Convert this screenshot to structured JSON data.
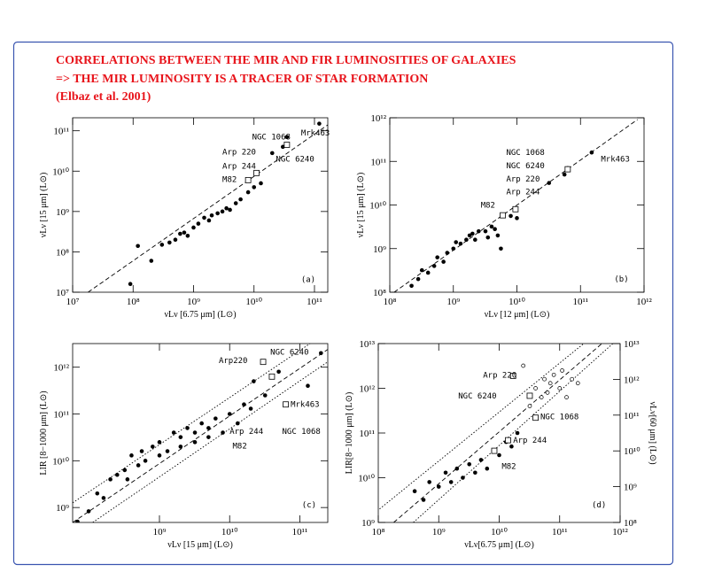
{
  "header": {
    "lines": [
      "CORRELATIONS BETWEEN THE MIR AND FIR LUMINOSITIES OF GALAXIES",
      "=> THE MIR LUMINOSITY IS A TRACER OF STAR FORMATION",
      "(Elbaz et al. 2001)"
    ]
  },
  "chart_data": [
    {
      "type": "scatter",
      "log": true,
      "color": "#000000",
      "x_label": "νLν [6.75 μm] (L⊙)",
      "y_label": "νLν [15 μm] (L⊙)",
      "xlim": [
        10000000.0,
        166000000000.0
      ],
      "ylim": [
        10000000.0,
        210000000000.0
      ],
      "xticks": [
        {
          "value": 10000000.0,
          "label": "10⁷"
        },
        {
          "value": 100000000.0,
          "label": "10⁸"
        },
        {
          "value": 1000000000.0,
          "label": "10⁹"
        },
        {
          "value": 10000000000.0,
          "label": "10¹⁰"
        },
        {
          "value": 100000000000.0,
          "label": "10¹¹"
        }
      ],
      "yticks": [
        {
          "value": 10000000.0,
          "label": "10⁷"
        },
        {
          "value": 100000000.0,
          "label": "10⁸"
        },
        {
          "value": 1000000000.0,
          "label": "10⁹"
        },
        {
          "value": 10000000000.0,
          "label": "10¹⁰"
        },
        {
          "value": 100000000000.0,
          "label": "10¹¹"
        }
      ],
      "points": {
        "x": [
          90000000.0,
          120000000.0,
          200000000.0,
          300000000.0,
          400000000.0,
          500000000.0,
          600000000.0,
          700000000.0,
          800000000.0,
          1000000000.0,
          1200000000.0,
          1500000000.0,
          1800000000.0,
          2000000000.0,
          2500000000.0,
          3000000000.0,
          3500000000.0,
          4000000000.0,
          5000000000.0,
          6000000000.0,
          8000000000.0,
          10000000000.0,
          13000000000.0,
          20000000000.0,
          30000000000.0,
          35000000000.0,
          120000000000.0
        ],
        "y": [
          16000000.0,
          140000000.0,
          60000000.0,
          150000000.0,
          170000000.0,
          200000000.0,
          280000000.0,
          300000000.0,
          250000000.0,
          400000000.0,
          500000000.0,
          700000000.0,
          600000000.0,
          800000000.0,
          900000000.0,
          1000000000.0,
          1200000000.0,
          1100000000.0,
          1600000000.0,
          2000000000.0,
          3000000000.0,
          4000000000.0,
          5000000000.0,
          28000000000.0,
          40000000000.0,
          70000000000.0,
          150000000000.0
        ]
      },
      "open_points": {
        "x": [
          8000000000.0,
          11000000000.0,
          35000000000.0
        ],
        "y": [
          6000000000.0,
          9000000000.0,
          45000000000.0
        ]
      },
      "lines": [
        {
          "x": [
            18000000.0,
            166000000000.0
          ],
          "y": [
            10000000.0,
            140000000000.0
          ],
          "style": "dashed"
        }
      ],
      "annotations": [
        {
          "text": "NGC 1068",
          "x": 9300000000.0,
          "y": 70000000000.0
        },
        {
          "text": "Mrk463",
          "x": 60000000000.0,
          "y": 90000000000.0
        },
        {
          "text": "Arp 220",
          "x": 3000000000.0,
          "y": 30000000000.0
        },
        {
          "text": "NGC 6240",
          "x": 23000000000.0,
          "y": 20000000000.0
        },
        {
          "text": "Arp 244",
          "x": 3000000000.0,
          "y": 13500000000.0
        },
        {
          "text": "M82",
          "x": 3000000000.0,
          "y": 6300000000.0
        },
        {
          "text": "(a)",
          "x": 60000000000.0,
          "y": 21000000.0
        }
      ]
    },
    {
      "type": "scatter",
      "log": true,
      "color": "#000000",
      "x_label": "νLν [12 μm] (L⊙)",
      "y_label": "νLν [15 μm] (L⊙)",
      "xlim": [
        100000000.0,
        1000000000000.0
      ],
      "ylim": [
        100000000.0,
        1000000000000.0
      ],
      "xticks": [
        {
          "value": 100000000.0,
          "label": "10⁸"
        },
        {
          "value": 1000000000.0,
          "label": "10⁹"
        },
        {
          "value": 10000000000.0,
          "label": "10¹⁰"
        },
        {
          "value": 100000000000.0,
          "label": "10¹¹"
        },
        {
          "value": 1000000000000.0,
          "label": "10¹²"
        }
      ],
      "yticks": [
        {
          "value": 100000000.0,
          "label": "10⁸"
        },
        {
          "value": 1000000000.0,
          "label": "10⁹"
        },
        {
          "value": 10000000000.0,
          "label": "10¹⁰"
        },
        {
          "value": 100000000000.0,
          "label": "10¹¹"
        },
        {
          "value": 1000000000000.0,
          "label": "10¹²"
        }
      ],
      "points": {
        "x": [
          220000000.0,
          280000000.0,
          320000000.0,
          400000000.0,
          500000000.0,
          560000000.0,
          700000000.0,
          800000000.0,
          1000000000.0,
          1100000000.0,
          1300000000.0,
          1600000000.0,
          1800000000.0,
          2000000000.0,
          2200000000.0,
          2500000000.0,
          3200000000.0,
          3500000000.0,
          4000000000.0,
          4500000000.0,
          5000000000.0,
          5600000000.0,
          8000000000.0,
          10000000000.0,
          32000000000.0,
          56000000000.0,
          63000000000.0,
          150000000000.0
        ],
        "y": [
          140000000.0,
          200000000.0,
          320000000.0,
          280000000.0,
          400000000.0,
          630000000.0,
          500000000.0,
          800000000.0,
          1000000000.0,
          1400000000.0,
          1300000000.0,
          1600000000.0,
          2000000000.0,
          2200000000.0,
          1600000000.0,
          2500000000.0,
          2500000000.0,
          1800000000.0,
          3200000000.0,
          2800000000.0,
          2000000000.0,
          1000000000.0,
          5600000000.0,
          5000000000.0,
          32000000000.0,
          50000000000.0,
          70000000000.0,
          160000000000.0
        ]
      },
      "open_points": {
        "x": [
          6000000000.0,
          9500000000.0,
          63000000000.0
        ],
        "y": [
          5800000000.0,
          8000000000.0,
          66000000000.0
        ]
      },
      "lines": [
        {
          "x": [
            117000000.0,
            790000000000.0
          ],
          "y": [
            100000000.0,
            910000000000.0
          ],
          "style": "dashed"
        }
      ],
      "annotations": [
        {
          "text": "NGC 1068",
          "x": 6800000000.0,
          "y": 160000000000.0
        },
        {
          "text": "NGC 6240",
          "x": 6800000000.0,
          "y": 80000000000.0
        },
        {
          "text": "Arp 220",
          "x": 6800000000.0,
          "y": 40000000000.0
        },
        {
          "text": "Arp 244",
          "x": 6800000000.0,
          "y": 20000000000.0
        },
        {
          "text": "M82",
          "x": 2700000000.0,
          "y": 10000000000.0
        },
        {
          "text": "Mrk463",
          "x": 210000000000.0,
          "y": 115000000000.0
        },
        {
          "text": "(b)",
          "x": 340000000000.0,
          "y": 200000000.0
        }
      ]
    },
    {
      "type": "scatter",
      "log": true,
      "color": "#000000",
      "x_label": "νLν [15 μm] (L⊙)",
      "y_label": "LIR [8−1000 μm] (L⊙)",
      "xlim": [
        58000000.0,
        250000000000.0
      ],
      "ylim": [
        480000000.0,
        3200000000000.0
      ],
      "xticks": [
        {
          "value": 1000000000.0,
          "label": "10⁹"
        },
        {
          "value": 10000000000.0,
          "label": "10¹⁰"
        },
        {
          "value": 100000000000.0,
          "label": "10¹¹"
        }
      ],
      "yticks": [
        {
          "value": 1000000000.0,
          "label": "10⁹"
        },
        {
          "value": 10000000000.0,
          "label": "10¹⁰"
        },
        {
          "value": 100000000000.0,
          "label": "10¹¹"
        },
        {
          "value": 1000000000000.0,
          "label": "10¹²"
        }
      ],
      "points": {
        "x": [
          68000000.0,
          98000000.0,
          130000000.0,
          160000000.0,
          200000000.0,
          250000000.0,
          320000000.0,
          350000000.0,
          400000000.0,
          500000000.0,
          560000000.0,
          630000000.0,
          800000000.0,
          1000000000.0,
          1000000000.0,
          1300000000.0,
          1600000000.0,
          2000000000.0,
          2000000000.0,
          2500000000.0,
          3200000000.0,
          3200000000.0,
          4000000000.0,
          5000000000.0,
          5000000000.0,
          6300000000.0,
          8000000000.0,
          10000000000.0,
          13000000000.0,
          16000000000.0,
          20000000000.0,
          22000000000.0,
          32000000000.0,
          50000000000.0,
          130000000000.0,
          200000000000.0
        ],
        "y": [
          500000000.0,
          830000000.0,
          2000000000.0,
          1600000000.0,
          4000000000.0,
          5000000000.0,
          6300000000.0,
          4000000000.0,
          13000000000.0,
          8000000000.0,
          16000000000.0,
          10000000000.0,
          20000000000.0,
          25000000000.0,
          13000000000.0,
          16000000000.0,
          40000000000.0,
          32000000000.0,
          20000000000.0,
          50000000000.0,
          40000000000.0,
          25000000000.0,
          63000000000.0,
          50000000000.0,
          32000000000.0,
          80000000000.0,
          40000000000.0,
          100000000000.0,
          63000000000.0,
          160000000000.0,
          130000000000.0,
          500000000000.0,
          250000000000.0,
          800000000000.0,
          400000000000.0,
          2000000000000.0
        ]
      },
      "open_points": {
        "x": [
          30000000000.0,
          40000000000.0,
          63000000000.0
        ],
        "y": [
          1300000000000.0,
          630000000000.0,
          160000000000.0
        ]
      },
      "lines": [
        {
          "x": [
            58000000.0,
            250000000000.0
          ],
          "y": [
            480000000.0,
            2400000000000.0
          ],
          "style": "dashed"
        },
        {
          "x": [
            58000000.0,
            140000000000.0
          ],
          "y": [
            1260000000.0,
            3200000000000.0
          ],
          "style": "dotted"
        },
        {
          "x": [
            112000000.0,
            250000000000.0
          ],
          "y": [
            480000000.0,
            1300000000000.0
          ],
          "style": "dotted"
        }
      ],
      "annotations": [
        {
          "text": "Arp220",
          "x": 7000000000.0,
          "y": 1400000000000.0
        },
        {
          "text": "NGC 6240",
          "x": 38000000000.0,
          "y": 2100000000000.0
        },
        {
          "text": "Mrk463",
          "x": 74000000000.0,
          "y": 160000000000.0
        },
        {
          "text": "NGC 1068",
          "x": 56000000000.0,
          "y": 43000000000.0
        },
        {
          "text": "Arp 244",
          "x": 10000000000.0,
          "y": 43000000000.0
        },
        {
          "text": "M82",
          "x": 11000000000.0,
          "y": 21000000000.0
        },
        {
          "text": "(c)",
          "x": 107000000000.0,
          "y": 1150000000.0
        }
      ]
    },
    {
      "type": "scatter",
      "log": true,
      "color": "#000000",
      "x_label": "νLν[6.75 μm] (L⊙)",
      "y_label": "LIR[8−1000 μm] (L⊙)",
      "y2_label": "νLν[60 μm] (L⊙)",
      "xlim": [
        100000000.0,
        1000000000000.0
      ],
      "ylim": [
        1000000000.0,
        10000000000000.0
      ],
      "y2lim": [
        100000000.0,
        10000000000000.0
      ],
      "xticks": [
        {
          "value": 100000000.0,
          "label": "10⁸"
        },
        {
          "value": 1000000000.0,
          "label": "10⁹"
        },
        {
          "value": 10000000000.0,
          "label": "10¹⁰"
        },
        {
          "value": 100000000000.0,
          "label": "10¹¹"
        },
        {
          "value": 1000000000000.0,
          "label": "10¹²"
        }
      ],
      "yticks": [
        {
          "value": 1000000000.0,
          "label": "10⁹"
        },
        {
          "value": 10000000000.0,
          "label": "10¹⁰"
        },
        {
          "value": 100000000000.0,
          "label": "10¹¹"
        },
        {
          "value": 1000000000000.0,
          "label": "10¹²"
        },
        {
          "value": 10000000000000.0,
          "label": "10¹³"
        }
      ],
      "y2ticks": [
        {
          "value": 100000000.0,
          "label": "10⁸"
        },
        {
          "value": 1000000000.0,
          "label": "10⁹"
        },
        {
          "value": 10000000000.0,
          "label": "10¹⁰"
        },
        {
          "value": 100000000000.0,
          "label": "10¹¹"
        },
        {
          "value": 1000000000000.0,
          "label": "10¹²"
        },
        {
          "value": 10000000000000.0,
          "label": "10¹³"
        }
      ],
      "points": {
        "x": [
          400000000.0,
          560000000.0,
          700000000.0,
          1000000000.0,
          1300000000.0,
          1600000000.0,
          2000000000.0,
          2500000000.0,
          3200000000.0,
          4000000000.0,
          5000000000.0,
          6300000000.0,
          8000000000.0,
          10000000000.0,
          13000000000.0,
          16000000000.0,
          20000000000.0
        ],
        "y": [
          5000000000.0,
          3200000000.0,
          8000000000.0,
          6300000000.0,
          13000000000.0,
          8000000000.0,
          16000000000.0,
          10000000000.0,
          20000000000.0,
          13000000000.0,
          25000000000.0,
          16000000000.0,
          40000000000.0,
          32000000000.0,
          63000000000.0,
          50000000000.0,
          100000000000.0
        ]
      },
      "open_circles": {
        "x": [
          32000000000.0,
          40000000000.0,
          50000000000.0,
          56000000000.0,
          63000000000.0,
          70000000000.0,
          80000000000.0,
          100000000000.0,
          110000000000.0,
          130000000000.0,
          160000000000.0,
          25000000000.0,
          200000000000.0
        ],
        "y": [
          400000000000.0,
          1000000000000.0,
          630000000000.0,
          1600000000000.0,
          800000000000.0,
          1300000000000.0,
          2000000000000.0,
          1000000000000.0,
          2500000000000.0,
          630000000000.0,
          1600000000000.0,
          3200000000000.0,
          1300000000000.0
        ]
      },
      "open_points": {
        "x": [
          17000000000.0,
          32000000000.0,
          40000000000.0,
          14000000000.0,
          8300000000.0
        ],
        "y": [
          1900000000000.0,
          680000000000.0,
          220000000000.0,
          69000000000.0,
          40000000000.0
        ]
      },
      "lines": [
        {
          "x": [
            180000000.0,
            500000000000.0
          ],
          "y": [
            1000000000.0,
            10000000000000.0
          ],
          "style": "dashed"
        },
        {
          "x": [
            105000000.0,
            250000000000.0
          ],
          "y": [
            2000000000.0,
            10000000000000.0
          ],
          "style": "dotted"
        },
        {
          "x": [
            380000000.0,
            1000000000000.0
          ],
          "y": [
            1000000000.0,
            14000000000000.0
          ],
          "style": "dotted"
        }
      ],
      "annotations": [
        {
          "text": "Arp 220",
          "x": 5400000000.0,
          "y": 2000000000000.0
        },
        {
          "text": "NGC 6240",
          "x": 2100000000.0,
          "y": 680000000000.0
        },
        {
          "text": "NGC 1068",
          "x": 48000000000.0,
          "y": 230000000000.0
        },
        {
          "text": "Arp 244",
          "x": 17000000000.0,
          "y": 69000000000.0
        },
        {
          "text": "M82",
          "x": 11000000000.0,
          "y": 18000000000.0
        },
        {
          "text": "(d)",
          "x": 340000000000.0,
          "y": 2500000000.0
        }
      ]
    }
  ]
}
